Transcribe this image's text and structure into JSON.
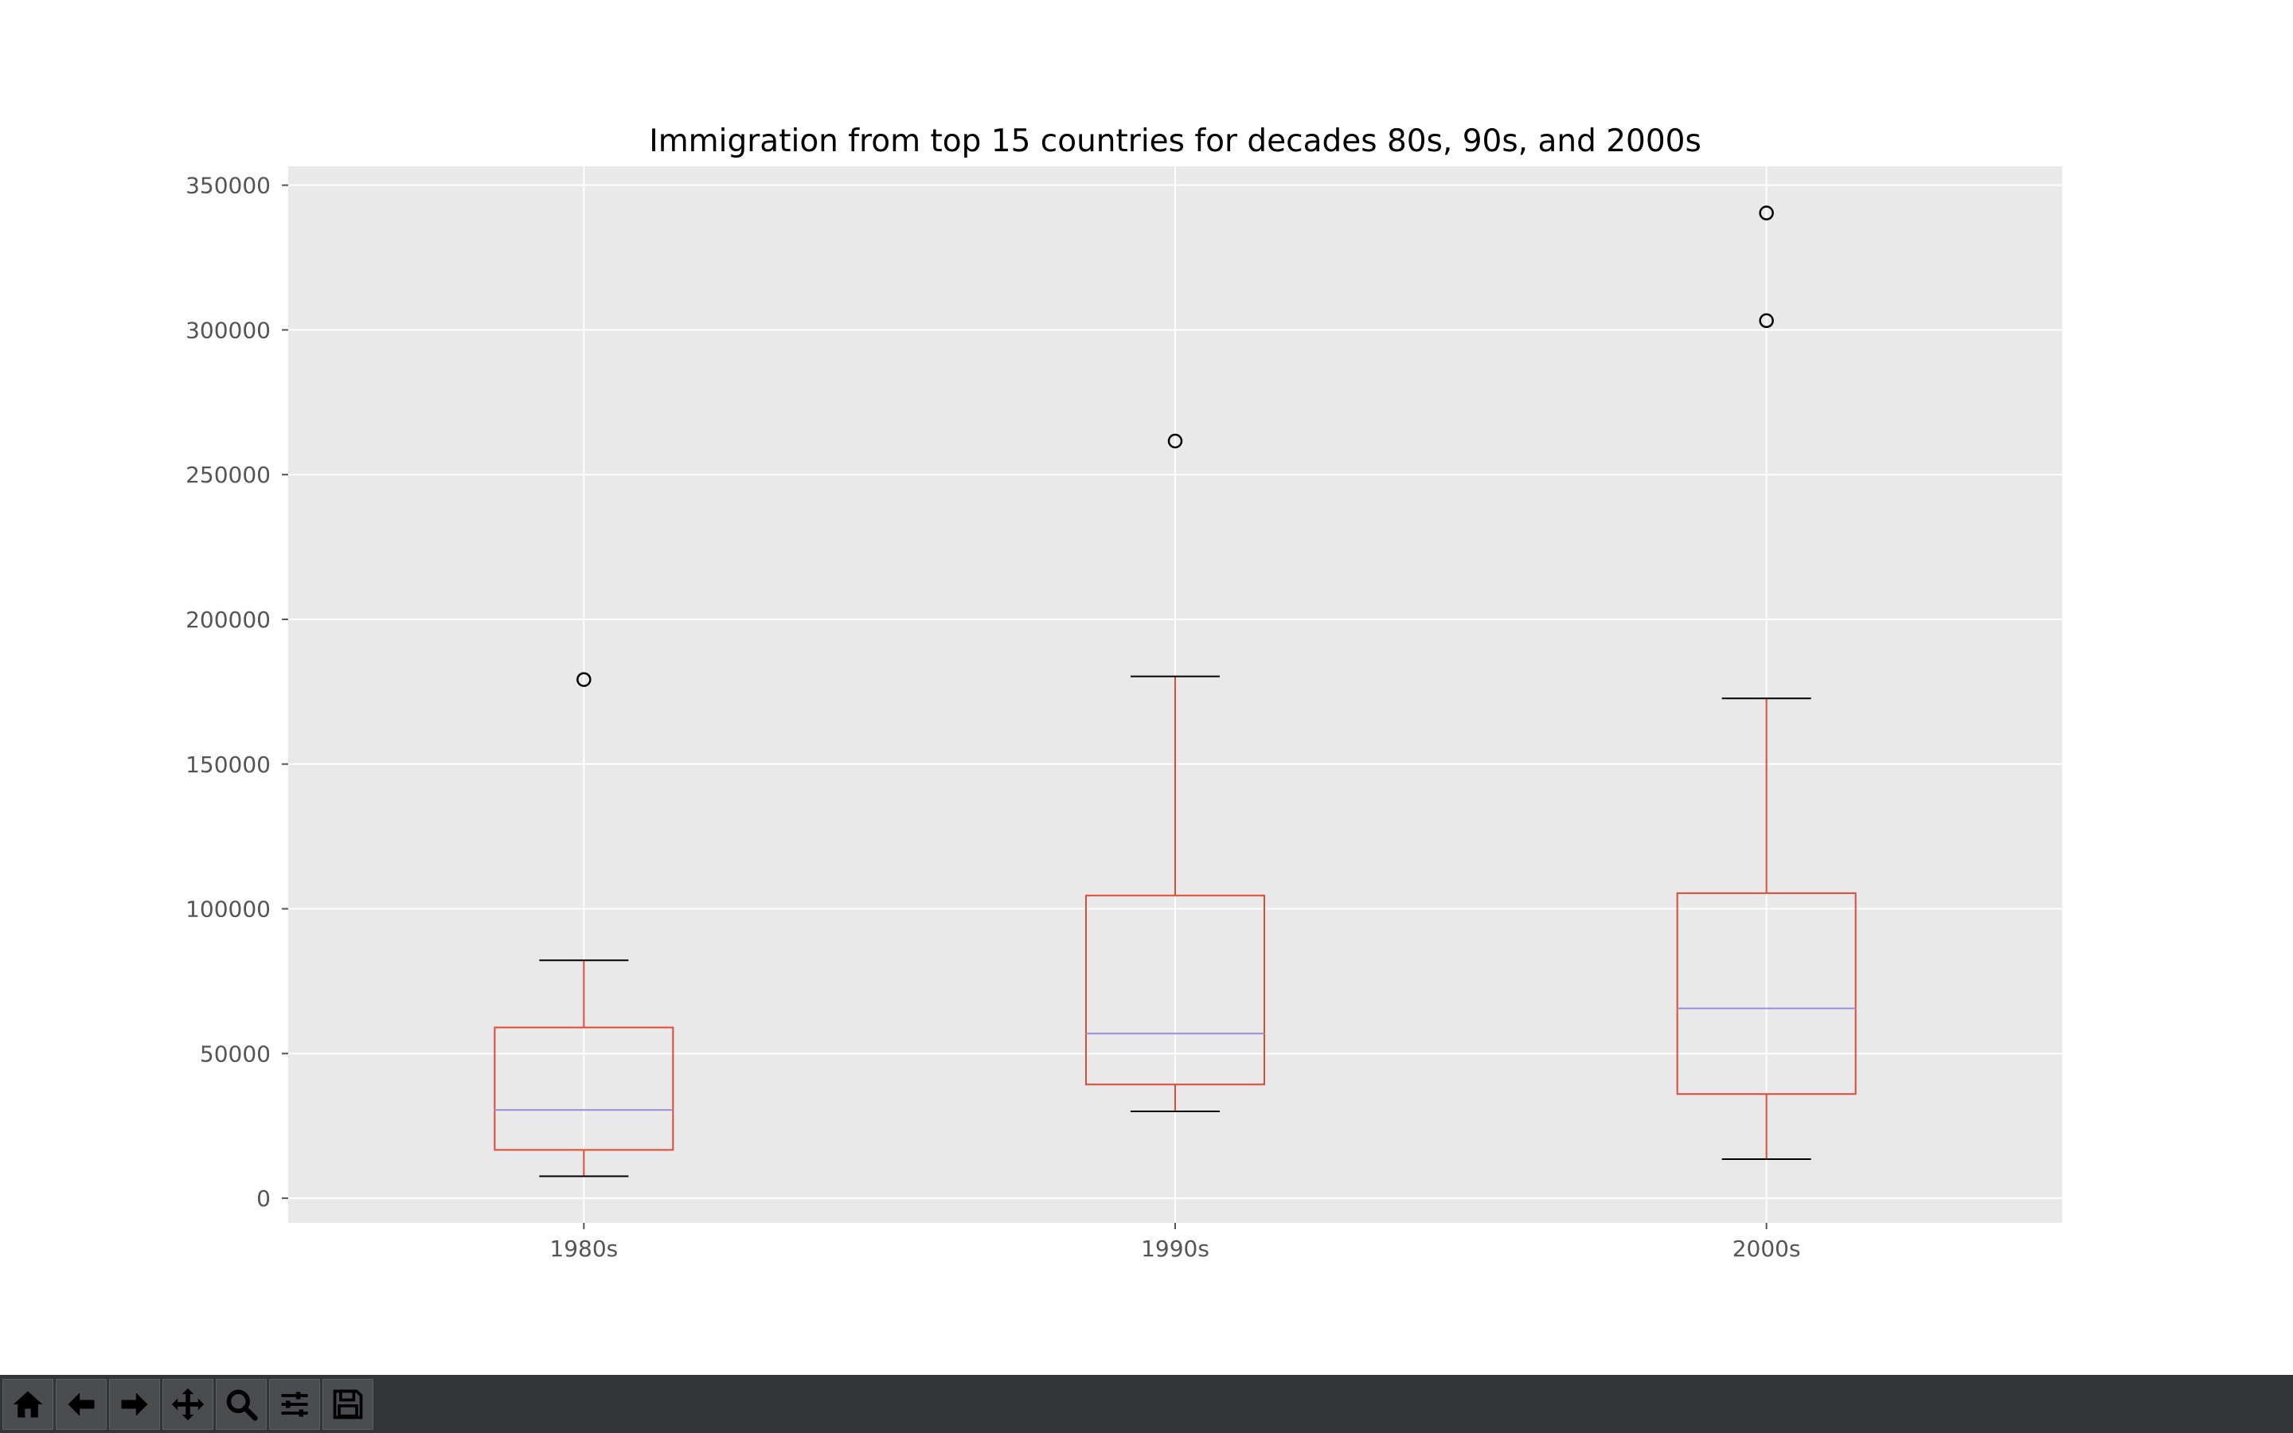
{
  "window": {
    "toolbar": {
      "buttons": [
        {
          "icon": "home-icon",
          "label": "Home"
        },
        {
          "icon": "back-arrow-icon",
          "label": "Back"
        },
        {
          "icon": "forward-arrow-icon",
          "label": "Forward"
        },
        {
          "icon": "pan-icon",
          "label": "Pan"
        },
        {
          "icon": "zoom-icon",
          "label": "Zoom"
        },
        {
          "icon": "configure-subplots-icon",
          "label": "Configure subplots"
        },
        {
          "icon": "save-icon",
          "label": "Save"
        }
      ]
    }
  },
  "colors": {
    "plot_background": "#e9e9e9",
    "grid": "#ffffff",
    "box": "#e24a33",
    "median": "#988ed5",
    "whisker_cap": "#000000",
    "flier": "#000000",
    "tick_label": "#555555",
    "title": "#000000"
  },
  "chart_data": {
    "type": "box",
    "title": "Immigration from top 15 countries for decades 80s, 90s, and 2000s",
    "xlabel": "",
    "ylabel": "",
    "categories": [
      "1980s",
      "1990s",
      "2000s"
    ],
    "ylim": [
      -8500,
      356500
    ],
    "yticks": [
      0,
      50000,
      100000,
      150000,
      200000,
      250000,
      300000,
      350000
    ],
    "grid": true,
    "legend": "none",
    "boxes": [
      {
        "category": "1980s",
        "whisker_low": 7600,
        "q1": 16700,
        "median": 30500,
        "q3": 59000,
        "whisker_high": 82200,
        "fliers": [
          179200
        ]
      },
      {
        "category": "1990s",
        "whisker_low": 30000,
        "q1": 39300,
        "median": 56900,
        "q3": 104600,
        "whisker_high": 180300,
        "fliers": [
          261600
        ]
      },
      {
        "category": "2000s",
        "whisker_low": 13500,
        "q1": 36000,
        "median": 65600,
        "q3": 105400,
        "whisker_high": 172700,
        "fliers": [
          303200,
          340400
        ]
      }
    ]
  }
}
